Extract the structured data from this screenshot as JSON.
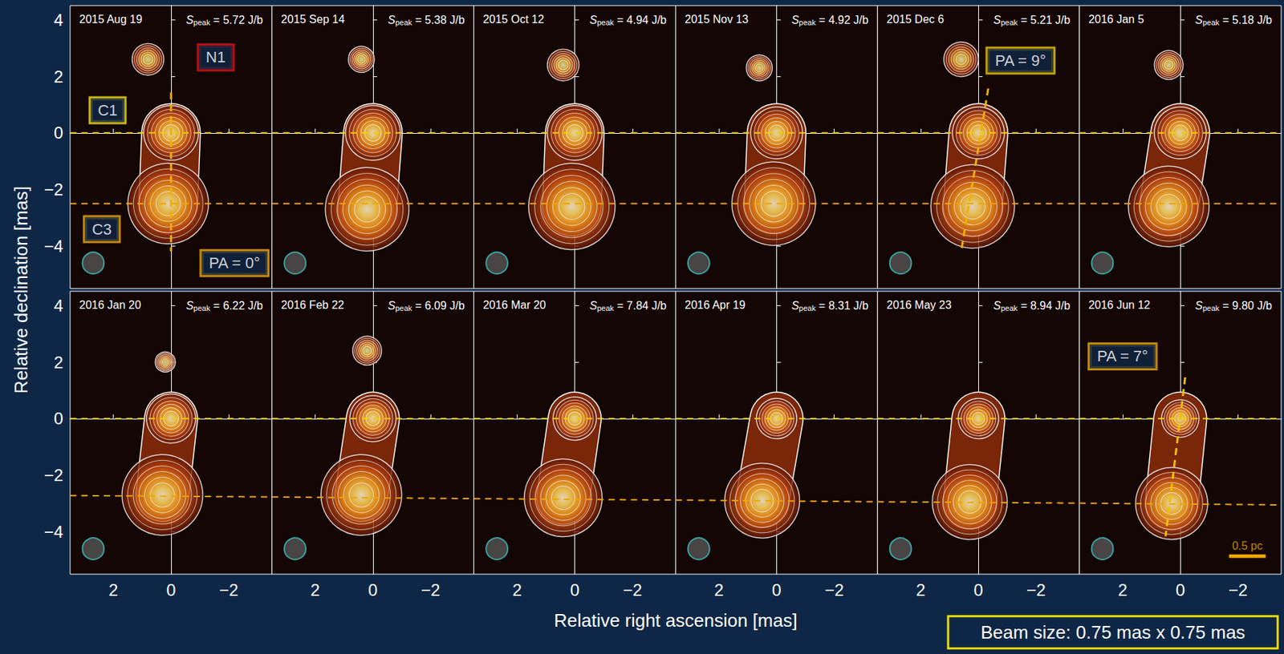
{
  "figure": {
    "ylabel": "Relative declination [mas]",
    "xlabel": "Relative right ascension [mas]",
    "note": "Beam size: 0.75 mas x 0.75 mas"
  },
  "chart_data": [
    {
      "type": "scatter",
      "title": "2015 Aug 19",
      "subtitle": "Speak = 5.72 J/b",
      "xlim": [
        3.5,
        -3.5
      ],
      "ylim": [
        -5.5,
        4.5
      ],
      "xticks": [
        2,
        0,
        {
          "value": -2,
          "label": "−2"
        }
      ],
      "yticks": [
        {
          "value": -4,
          "label": "−4"
        },
        {
          "value": -2,
          "label": "−2"
        },
        0,
        2,
        4
      ],
      "grid": false,
      "tick_labels": "y",
      "components": [
        {
          "name": "C1",
          "x": 0,
          "y": 0,
          "size": 1.9
        },
        {
          "name": "C3",
          "x": 0.1,
          "y": -2.5,
          "size": 2.8
        },
        {
          "name": "N1",
          "x": 0.8,
          "y": 2.6,
          "size": 1.1
        }
      ],
      "jet_width": 2.0,
      "ref_lines": [
        {
          "y": [
            0,
            0
          ],
          "color": "#f0d000"
        },
        {
          "y": [
            -2.5,
            -2.5
          ],
          "color": "#f0a500"
        }
      ],
      "pa_line": {
        "x": [
          0,
          0
        ],
        "y": [
          1.43,
          -4.19
        ],
        "color": "#f0b000"
      },
      "annotations": [
        {
          "text": "C1",
          "x": 2.2,
          "y": 0.8,
          "color": "#f5e11a"
        },
        {
          "text": "C3",
          "x": 2.4,
          "y": -3.4,
          "color": "#f0a500"
        },
        {
          "text": "N1",
          "x": -1.55,
          "y": 2.67,
          "color": "#e01010"
        },
        {
          "text": "PA = 0°",
          "x": -2.2,
          "y": -4.6,
          "color": "#f5a800"
        }
      ],
      "beam": {
        "x": 2.7,
        "y": -4.6,
        "size": 0.75
      }
    },
    {
      "type": "scatter",
      "title": "2015 Sep 14",
      "subtitle": "Speak = 5.38 J/b",
      "xlim": [
        3.5,
        -3.5
      ],
      "ylim": [
        -5.5,
        4.5
      ],
      "xticks": [
        2,
        0,
        {
          "value": -2,
          "label": "−2"
        }
      ],
      "yticks": [
        {
          "value": -4,
          "label": "−4"
        },
        {
          "value": -2,
          "label": "−2"
        },
        0,
        2,
        4
      ],
      "grid": false,
      "tick_labels": false,
      "components": [
        {
          "name": "C1",
          "x": 0,
          "y": 0,
          "size": 1.9
        },
        {
          "name": "C3",
          "x": 0.2,
          "y": -2.7,
          "size": 2.9
        },
        {
          "name": "N1",
          "x": 0.4,
          "y": 2.6,
          "size": 0.9
        }
      ],
      "jet_width": 2.0,
      "ref_lines": [
        {
          "y": [
            0,
            0
          ],
          "color": "#f0d000"
        },
        {
          "y": [
            -2.5,
            -2.5
          ],
          "color": "#f0a500"
        }
      ],
      "beam": {
        "x": 2.7,
        "y": -4.6,
        "size": 0.75
      }
    },
    {
      "type": "scatter",
      "title": "2015 Oct 12",
      "subtitle": "Speak = 4.94 J/b",
      "xlim": [
        3.5,
        -3.5
      ],
      "ylim": [
        -5.5,
        4.5
      ],
      "xticks": [
        2,
        0,
        {
          "value": -2,
          "label": "−2"
        }
      ],
      "yticks": [
        {
          "value": -4,
          "label": "−4"
        },
        {
          "value": -2,
          "label": "−2"
        },
        0,
        2,
        4
      ],
      "grid": false,
      "tick_labels": false,
      "components": [
        {
          "name": "C1",
          "x": 0,
          "y": 0,
          "size": 1.9
        },
        {
          "name": "C3",
          "x": 0.1,
          "y": -2.6,
          "size": 3.0
        },
        {
          "name": "N1",
          "x": 0.4,
          "y": 2.4,
          "size": 1.1
        }
      ],
      "jet_width": 2.0,
      "ref_lines": [
        {
          "y": [
            0,
            0
          ],
          "color": "#f0d000"
        },
        {
          "y": [
            -2.5,
            -2.5
          ],
          "color": "#f0a500"
        }
      ],
      "beam": {
        "x": 2.7,
        "y": -4.6,
        "size": 0.75
      }
    },
    {
      "type": "scatter",
      "title": "2015 Nov 13",
      "subtitle": "Speak = 4.92 J/b",
      "xlim": [
        3.5,
        -3.5
      ],
      "ylim": [
        -5.5,
        4.5
      ],
      "xticks": [
        2,
        0,
        {
          "value": -2,
          "label": "−2"
        }
      ],
      "yticks": [
        {
          "value": -4,
          "label": "−4"
        },
        {
          "value": -2,
          "label": "−2"
        },
        0,
        2,
        4
      ],
      "grid": false,
      "tick_labels": false,
      "components": [
        {
          "name": "C1",
          "x": 0,
          "y": 0,
          "size": 1.8
        },
        {
          "name": "C3",
          "x": 0.1,
          "y": -2.5,
          "size": 2.9
        },
        {
          "name": "N1",
          "x": 0.6,
          "y": 2.3,
          "size": 0.9
        }
      ],
      "jet_width": 2.0,
      "ref_lines": [
        {
          "y": [
            0,
            0
          ],
          "color": "#f0d000"
        },
        {
          "y": [
            -2.5,
            -2.5
          ],
          "color": "#f0a500"
        }
      ],
      "beam": {
        "x": 2.7,
        "y": -4.6,
        "size": 0.75
      }
    },
    {
      "type": "scatter",
      "title": "2015 Dec 6",
      "subtitle": "Speak = 5.21 J/b",
      "xlim": [
        3.5,
        -3.5
      ],
      "ylim": [
        -5.5,
        4.5
      ],
      "xticks": [
        2,
        0,
        {
          "value": -2,
          "label": "−2"
        }
      ],
      "yticks": [
        {
          "value": -4,
          "label": "−4"
        },
        {
          "value": -2,
          "label": "−2"
        },
        0,
        2,
        4
      ],
      "grid": false,
      "tick_labels": false,
      "components": [
        {
          "name": "C1",
          "x": 0,
          "y": 0,
          "size": 1.8
        },
        {
          "name": "C3",
          "x": 0.2,
          "y": -2.6,
          "size": 2.9
        },
        {
          "name": "N1",
          "x": 0.6,
          "y": 2.6,
          "size": 1.2
        }
      ],
      "jet_width": 2.0,
      "ref_lines": [
        {
          "y": [
            0,
            0
          ],
          "color": "#f0d000"
        },
        {
          "y": [
            -2.5,
            -2.5
          ],
          "color": "#f0a500"
        }
      ],
      "pa_line": {
        "x": [
          -0.34,
          0.59
        ],
        "y": [
          1.57,
          -4.13
        ],
        "color": "#f0b000"
      },
      "annotations": [
        {
          "text": "PA = 9°",
          "x": -1.46,
          "y": 2.56,
          "color": "#f0c800"
        }
      ],
      "beam": {
        "x": 2.7,
        "y": -4.6,
        "size": 0.75
      }
    },
    {
      "type": "scatter",
      "title": "2016 Jan 5",
      "subtitle": "Speak = 5.18 J/b",
      "xlim": [
        3.5,
        -3.5
      ],
      "ylim": [
        -5.5,
        4.5
      ],
      "xticks": [
        2,
        0,
        {
          "value": -2,
          "label": "−2"
        }
      ],
      "yticks": [
        {
          "value": -4,
          "label": "−4"
        },
        {
          "value": -2,
          "label": "−2"
        },
        0,
        2,
        4
      ],
      "grid": false,
      "tick_labels": false,
      "components": [
        {
          "name": "C1",
          "x": 0,
          "y": 0,
          "size": 1.8
        },
        {
          "name": "C3",
          "x": 0.4,
          "y": -2.6,
          "size": 2.8
        },
        {
          "name": "N1",
          "x": 0.4,
          "y": 2.4,
          "size": 1.0
        }
      ],
      "jet_width": 2.0,
      "ref_lines": [
        {
          "y": [
            0,
            0
          ],
          "color": "#f0d000"
        },
        {
          "y": [
            -2.5,
            -2.5
          ],
          "color": "#f0a500"
        }
      ],
      "beam": {
        "x": 2.7,
        "y": -4.6,
        "size": 0.75
      }
    },
    {
      "type": "scatter",
      "title": "2016 Jan 20",
      "subtitle": "Speak = 6.22 J/b",
      "xlim": [
        3.5,
        -3.5
      ],
      "ylim": [
        -5.5,
        4.5
      ],
      "xticks": [
        2,
        0,
        {
          "value": -2,
          "label": "−2"
        }
      ],
      "yticks": [
        {
          "value": -4,
          "label": "−4"
        },
        {
          "value": -2,
          "label": "−2"
        },
        0,
        2,
        4
      ],
      "grid": false,
      "components": [
        {
          "name": "C1",
          "x": 0,
          "y": 0,
          "size": 1.7
        },
        {
          "name": "C3",
          "x": 0.3,
          "y": -2.7,
          "size": 2.8
        },
        {
          "name": "N1",
          "x": 0.2,
          "y": 2.0,
          "size": 0.7
        }
      ],
      "jet_width": 1.8,
      "ref_lines": [
        {
          "y": [
            0,
            0
          ],
          "color": "#f0d000"
        },
        {
          "y": [
            -2.72,
            -2.77
          ],
          "color": "#f0a500"
        }
      ],
      "beam": {
        "x": 2.7,
        "y": -4.6,
        "size": 0.75
      }
    },
    {
      "type": "scatter",
      "title": "2016 Feb 22",
      "subtitle": "Speak = 6.09 J/b",
      "xlim": [
        3.5,
        -3.5
      ],
      "ylim": [
        -5.5,
        4.5
      ],
      "xticks": [
        2,
        0,
        {
          "value": -2,
          "label": "−2"
        }
      ],
      "yticks": [
        {
          "value": -4,
          "label": "−4"
        },
        {
          "value": -2,
          "label": "−2"
        },
        0,
        2,
        4
      ],
      "grid": false,
      "tick_labels": "x",
      "components": [
        {
          "name": "C1",
          "x": 0,
          "y": 0,
          "size": 1.6
        },
        {
          "name": "C3",
          "x": 0.4,
          "y": -2.7,
          "size": 2.8
        },
        {
          "name": "N1",
          "x": 0.2,
          "y": 2.4,
          "size": 1.0
        }
      ],
      "jet_width": 1.8,
      "ref_lines": [
        {
          "y": [
            0,
            0
          ],
          "color": "#f0d000"
        },
        {
          "y": [
            -2.77,
            -2.83
          ],
          "color": "#f0a500"
        }
      ],
      "beam": {
        "x": 2.7,
        "y": -4.6,
        "size": 0.75
      }
    },
    {
      "type": "scatter",
      "title": "2016 Mar 20",
      "subtitle": "Speak = 7.84 J/b",
      "xlim": [
        3.5,
        -3.5
      ],
      "ylim": [
        -5.5,
        4.5
      ],
      "xticks": [
        2,
        0,
        {
          "value": -2,
          "label": "−2"
        }
      ],
      "yticks": [
        {
          "value": -4,
          "label": "−4"
        },
        {
          "value": -2,
          "label": "−2"
        },
        0,
        2,
        4
      ],
      "grid": false,
      "tick_labels": "x",
      "components": [
        {
          "name": "C1",
          "x": 0,
          "y": 0,
          "size": 1.5
        },
        {
          "name": "C3",
          "x": 0.4,
          "y": -2.8,
          "size": 2.7
        }
      ],
      "jet_width": 1.8,
      "ref_lines": [
        {
          "y": [
            0,
            0
          ],
          "color": "#f0d000"
        },
        {
          "y": [
            -2.83,
            -2.88
          ],
          "color": "#f0a500"
        }
      ],
      "beam": {
        "x": 2.7,
        "y": -4.6,
        "size": 0.75
      }
    },
    {
      "type": "scatter",
      "title": "2016 Apr 19",
      "subtitle": "Speak = 8.31 J/b",
      "xlim": [
        3.5,
        -3.5
      ],
      "ylim": [
        -5.5,
        4.5
      ],
      "xticks": [
        2,
        0,
        {
          "value": -2,
          "label": "−2"
        }
      ],
      "yticks": [
        {
          "value": -4,
          "label": "−4"
        },
        {
          "value": -2,
          "label": "−2"
        },
        0,
        2,
        4
      ],
      "grid": false,
      "tick_labels": "x",
      "components": [
        {
          "name": "C1",
          "x": 0,
          "y": 0,
          "size": 1.4
        },
        {
          "name": "C3",
          "x": 0.5,
          "y": -2.9,
          "size": 2.6
        }
      ],
      "jet_width": 1.8,
      "ref_lines": [
        {
          "y": [
            0,
            0
          ],
          "color": "#f0d000"
        },
        {
          "y": [
            -2.88,
            -2.94
          ],
          "color": "#f0a500"
        }
      ],
      "beam": {
        "x": 2.7,
        "y": -4.6,
        "size": 0.75
      }
    },
    {
      "type": "scatter",
      "title": "2016 May 23",
      "subtitle": "Speak = 8.94 J/b",
      "xlim": [
        3.5,
        -3.5
      ],
      "ylim": [
        -5.5,
        4.5
      ],
      "xticks": [
        2,
        0,
        {
          "value": -2,
          "label": "−2"
        }
      ],
      "yticks": [
        {
          "value": -4,
          "label": "−4"
        },
        {
          "value": -2,
          "label": "−2"
        },
        0,
        2,
        4
      ],
      "grid": false,
      "tick_labels": "x",
      "components": [
        {
          "name": "C1",
          "x": 0,
          "y": 0,
          "size": 1.4
        },
        {
          "name": "C3",
          "x": 0.3,
          "y": -2.95,
          "size": 2.6
        }
      ],
      "jet_width": 1.8,
      "ref_lines": [
        {
          "y": [
            0,
            0
          ],
          "color": "#f0d000"
        },
        {
          "y": [
            -2.94,
            -2.99
          ],
          "color": "#f0a500"
        }
      ],
      "beam": {
        "x": 2.7,
        "y": -4.6,
        "size": 0.75
      }
    },
    {
      "type": "scatter",
      "title": "2016 Jun 12",
      "subtitle": "Speak = 9.80 J/b",
      "xlim": [
        3.5,
        -3.5
      ],
      "ylim": [
        -5.5,
        4.5
      ],
      "xticks": [
        2,
        0,
        {
          "value": -2,
          "label": "−2"
        }
      ],
      "yticks": [
        {
          "value": -4,
          "label": "−4"
        },
        {
          "value": -2,
          "label": "−2"
        },
        0,
        2,
        4
      ],
      "grid": false,
      "tick_labels": "x",
      "components": [
        {
          "name": "C1",
          "x": 0,
          "y": 0,
          "size": 1.3
        },
        {
          "name": "C3",
          "x": 0.3,
          "y": -3.0,
          "size": 2.5
        }
      ],
      "jet_width": 1.8,
      "ref_lines": [
        {
          "y": [
            0,
            0
          ],
          "color": "#f0d000"
        },
        {
          "y": [
            -2.99,
            -3.05
          ],
          "color": "#f0a500"
        }
      ],
      "pa_line": {
        "x": [
          -0.17,
          0.51
        ],
        "y": [
          1.46,
          -4.16
        ],
        "color": "#f0c000"
      },
      "annotations": [
        {
          "text": "PA = 7°",
          "x": 2.0,
          "y": 2.2,
          "color": "#f0a800"
        }
      ],
      "beam": {
        "x": 2.7,
        "y": -4.6,
        "size": 0.75
      },
      "scale_bar": {
        "label": "0.5 pc",
        "x": [
          -1.69,
          -2.96
        ],
        "y": -4.86,
        "color": "#f0a800"
      }
    }
  ]
}
